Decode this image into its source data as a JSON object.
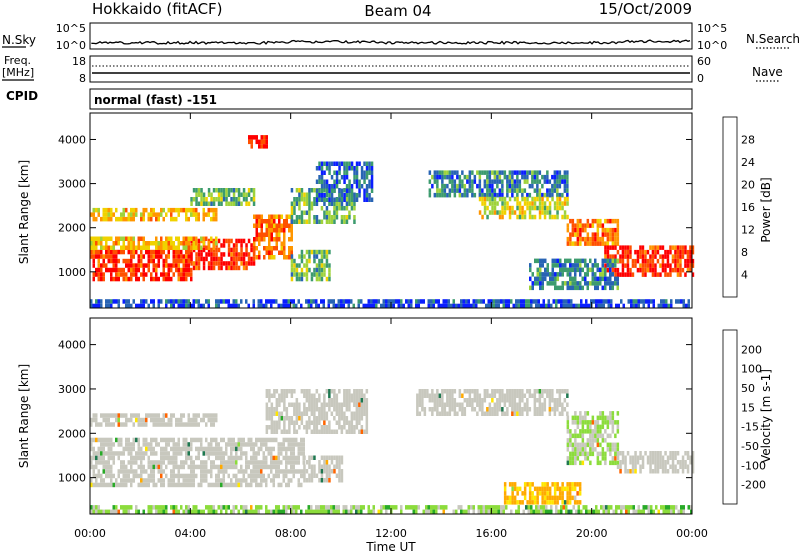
{
  "header": {
    "station": "Hokkaido (fitACF)",
    "beam": "Beam 04",
    "date": "15/Oct/2009"
  },
  "summary": {
    "nsky_label": "N.Sky",
    "nsearch_label": "N.Search",
    "nsky_ticks": [
      "10^5",
      "10^0"
    ],
    "nsearch_ticks": [
      "10^5",
      "10^0"
    ],
    "freq_label_1": "Freq.",
    "freq_label_2": "[MHz]",
    "freq_ticks": [
      "18",
      "8"
    ],
    "nave_label": "Nave",
    "nave_ticks": [
      "60",
      "0"
    ],
    "cpid_label": "CPID",
    "cpid_value": "normal (fast) -151"
  },
  "power_panel": {
    "ylabel": "Slant Range [km]",
    "colorbar_label": "Power [dB]",
    "colorbar_ticks": [
      "28",
      "24",
      "20",
      "16",
      "12",
      "8",
      "4"
    ],
    "colorbar_colors": [
      "#ff0000",
      "#ff5000",
      "#ff9600",
      "#f0d200",
      "#9fd23c",
      "#3c9b6e",
      "#2864b4",
      "#0a1eff"
    ]
  },
  "velocity_panel": {
    "ylabel": "Slant Range [km]",
    "colorbar_label": "Velocity [m s-1]",
    "colorbar_ticks": [
      "200",
      "100",
      "50",
      "15",
      "-15",
      "-50",
      "-100",
      "-200"
    ],
    "colorbar_colors": [
      "#1e32c8",
      "#1e7850",
      "#28aa28",
      "#8cdc3c",
      "#c8c8be",
      "#ffe600",
      "#ffaa00",
      "#ff6400",
      "#ff0000"
    ]
  },
  "xaxis": {
    "label": "Time UT",
    "ticks": [
      "00:00",
      "04:00",
      "08:00",
      "12:00",
      "16:00",
      "20:00",
      "00:00"
    ]
  },
  "chart_data": {
    "type": "heatmap",
    "x_range_hours": [
      0,
      24
    ],
    "y_range_km": [
      180,
      4600
    ],
    "y_ticks": [
      1000,
      2000,
      3000,
      4000
    ],
    "power_regions": [
      {
        "t0": 0.0,
        "t1": 4.0,
        "r0": 850,
        "r1": 1500,
        "level": 28
      },
      {
        "t0": 4.0,
        "t1": 6.5,
        "r0": 1050,
        "r1": 1750,
        "level": 28
      },
      {
        "t0": 6.5,
        "t1": 8.0,
        "r0": 1300,
        "r1": 2300,
        "level": 24
      },
      {
        "t0": 0.0,
        "t1": 5.0,
        "r0": 1500,
        "r1": 1800,
        "level": 20
      },
      {
        "t0": 0.0,
        "t1": 5.0,
        "r0": 2200,
        "r1": 2450,
        "level": 20
      },
      {
        "t0": 4.0,
        "t1": 6.5,
        "r0": 2500,
        "r1": 2900,
        "level": 12
      },
      {
        "t0": 8.0,
        "t1": 10.5,
        "r0": 2100,
        "r1": 2900,
        "level": 12
      },
      {
        "t0": 9.0,
        "t1": 11.2,
        "r0": 2600,
        "r1": 3500,
        "level": 6
      },
      {
        "t0": 8.0,
        "t1": 9.5,
        "r0": 800,
        "r1": 1500,
        "level": 12
      },
      {
        "t0": 13.5,
        "t1": 19.0,
        "r0": 2700,
        "r1": 3300,
        "level": 8
      },
      {
        "t0": 15.5,
        "t1": 19.0,
        "r0": 2200,
        "r1": 2700,
        "level": 16
      },
      {
        "t0": 19.0,
        "t1": 21.0,
        "r0": 1600,
        "r1": 2200,
        "level": 24
      },
      {
        "t0": 20.5,
        "t1": 24.0,
        "r0": 900,
        "r1": 1600,
        "level": 28
      },
      {
        "t0": 17.5,
        "t1": 21.0,
        "r0": 600,
        "r1": 1300,
        "level": 8
      },
      {
        "t0": 6.3,
        "t1": 7.0,
        "r0": 3800,
        "r1": 4100,
        "level": 28
      },
      {
        "t0": 0.0,
        "t1": 24.0,
        "r0": 180,
        "r1": 380,
        "level": 4
      }
    ],
    "velocity_regions": [
      {
        "t0": 0.0,
        "t1": 8.5,
        "r0": 850,
        "r1": 1900,
        "level": 0
      },
      {
        "t0": 8.5,
        "t1": 10.0,
        "r0": 900,
        "r1": 1500,
        "level": 0
      },
      {
        "t0": 7.0,
        "t1": 11.0,
        "r0": 2000,
        "r1": 3000,
        "level": 0
      },
      {
        "t0": 0.0,
        "t1": 5.0,
        "r0": 2200,
        "r1": 2450,
        "level": 0
      },
      {
        "t0": 13.0,
        "t1": 19.0,
        "r0": 2400,
        "r1": 3000,
        "level": 0
      },
      {
        "t0": 19.0,
        "t1": 21.0,
        "r0": 1300,
        "r1": 2500,
        "level": 20
      },
      {
        "t0": 21.0,
        "t1": 24.0,
        "r0": 1100,
        "r1": 1600,
        "level": 0
      },
      {
        "t0": 16.5,
        "t1": 19.5,
        "r0": 400,
        "r1": 900,
        "level": -60
      },
      {
        "t0": 0.0,
        "t1": 24.0,
        "r0": 180,
        "r1": 380,
        "level": 30
      }
    ]
  }
}
